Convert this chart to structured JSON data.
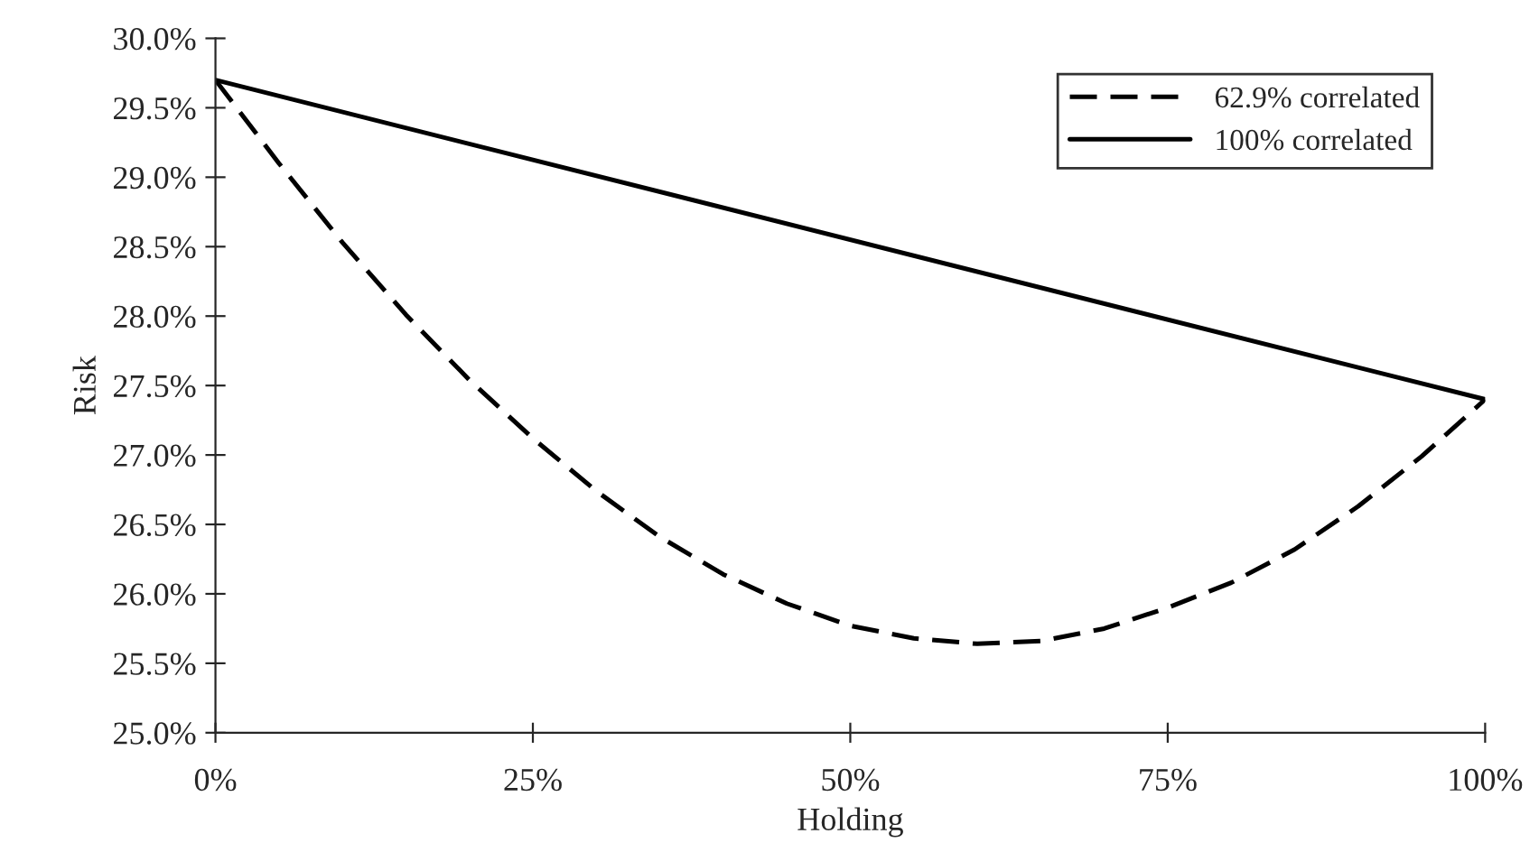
{
  "chart_data": {
    "type": "line",
    "xlabel": "Holding",
    "ylabel": "Risk",
    "x": [
      0,
      5,
      10,
      15,
      20,
      25,
      30,
      35,
      40,
      45,
      50,
      55,
      60,
      65,
      70,
      75,
      80,
      85,
      90,
      95,
      100
    ],
    "series": [
      {
        "name": "62.9% correlated",
        "color": "#000000",
        "line_style": "dashed",
        "values": [
          29.7,
          29.1,
          28.53,
          28.01,
          27.54,
          27.12,
          26.74,
          26.41,
          26.14,
          25.93,
          25.77,
          25.68,
          25.64,
          25.66,
          25.75,
          25.9,
          26.08,
          26.32,
          26.63,
          26.99,
          27.4
        ]
      },
      {
        "name": "100% correlated",
        "color": "#000000",
        "line_style": "solid",
        "x": [
          0,
          100
        ],
        "values": [
          29.7,
          27.4
        ]
      }
    ],
    "xlim": [
      0,
      100
    ],
    "xticks": [
      {
        "value": 0,
        "label": "0%"
      },
      {
        "value": 25,
        "label": "25%"
      },
      {
        "value": 50,
        "label": "50%"
      },
      {
        "value": 75,
        "label": "75%"
      },
      {
        "value": 100,
        "label": "100%"
      }
    ],
    "ylim": [
      25,
      30
    ],
    "yticks": [
      {
        "value": 25,
        "label": "25.0%"
      },
      {
        "value": 25.5,
        "label": "25.5%"
      },
      {
        "value": 26,
        "label": "26.0%"
      },
      {
        "value": 26.5,
        "label": "26.5%"
      },
      {
        "value": 27,
        "label": "27.0%"
      },
      {
        "value": 27.5,
        "label": "27.5%"
      },
      {
        "value": 28,
        "label": "28.0%"
      },
      {
        "value": 28.5,
        "label": "28.5%"
      },
      {
        "value": 29,
        "label": "29.0%"
      },
      {
        "value": 29.5,
        "label": "29.5%"
      },
      {
        "value": 30,
        "label": "30.0%"
      }
    ],
    "grid": false,
    "legend": "top right",
    "marker": "none"
  }
}
